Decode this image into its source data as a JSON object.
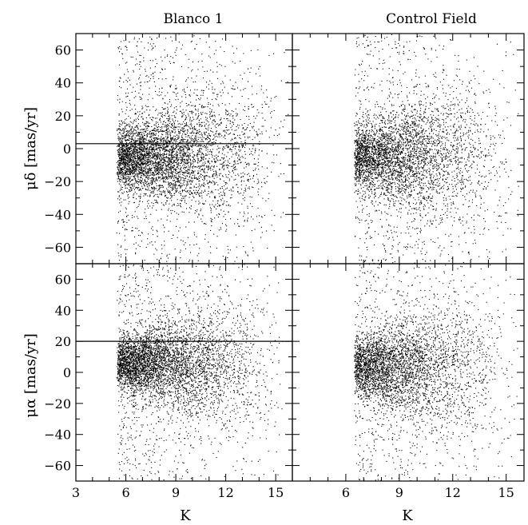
{
  "chart_data": [
    {
      "type": "scatter",
      "panel": "top-left",
      "title": "Blanco 1",
      "xlabel": "",
      "ylabel": "μδ [mas/yr]",
      "xlim": [
        3,
        16
      ],
      "ylim": [
        -70,
        70
      ],
      "xticks": [
        3,
        6,
        9,
        12,
        15
      ],
      "yticks": [
        -60,
        -40,
        -20,
        0,
        20,
        40,
        60
      ],
      "reference_line_y": 3,
      "reference_line_x_range": [
        3,
        16
      ],
      "point_cloud": {
        "n": 5200,
        "center_x": 14.3,
        "center_y": -5,
        "spread_y": 18,
        "k_start": 5.5
      }
    },
    {
      "type": "scatter",
      "panel": "top-right",
      "title": "Control Field",
      "xlabel": "",
      "ylabel": "",
      "xlim": [
        3,
        16
      ],
      "ylim": [
        -70,
        70
      ],
      "xticks": [
        3,
        6,
        9,
        12,
        15
      ],
      "yticks": [
        -60,
        -40,
        -20,
        0,
        20,
        40,
        60
      ],
      "point_cloud": {
        "n": 4300,
        "center_x": 14.3,
        "center_y": -5,
        "spread_y": 20,
        "k_start": 6.5
      }
    },
    {
      "type": "scatter",
      "panel": "bottom-left",
      "title": "",
      "xlabel": "K",
      "ylabel": "μα [mas/yr]",
      "xlim": [
        3,
        16
      ],
      "ylim": [
        -70,
        70
      ],
      "xticks": [
        3,
        6,
        9,
        12,
        15
      ],
      "xticklabels": [
        "3",
        "6",
        "9",
        "12",
        "15"
      ],
      "yticks": [
        -60,
        -40,
        -20,
        0,
        20,
        40,
        60
      ],
      "reference_line_y": 20,
      "reference_line_x_range": [
        3,
        16
      ],
      "point_cloud": {
        "n": 5200,
        "center_x": 14.3,
        "center_y": 6,
        "spread_y": 18,
        "k_start": 5.5
      }
    },
    {
      "type": "scatter",
      "panel": "bottom-right",
      "title": "",
      "xlabel": "K",
      "ylabel": "",
      "xlim": [
        3,
        16
      ],
      "ylim": [
        -70,
        70
      ],
      "xticks": [
        3,
        6,
        9,
        12,
        15
      ],
      "xticklabels": [
        "",
        "6",
        "9",
        "12",
        "15"
      ],
      "yticks": [
        -60,
        -40,
        -20,
        0,
        20,
        40,
        60
      ],
      "point_cloud": {
        "n": 4300,
        "center_x": 14.3,
        "center_y": 4,
        "spread_y": 20,
        "k_start": 6.5
      }
    }
  ]
}
